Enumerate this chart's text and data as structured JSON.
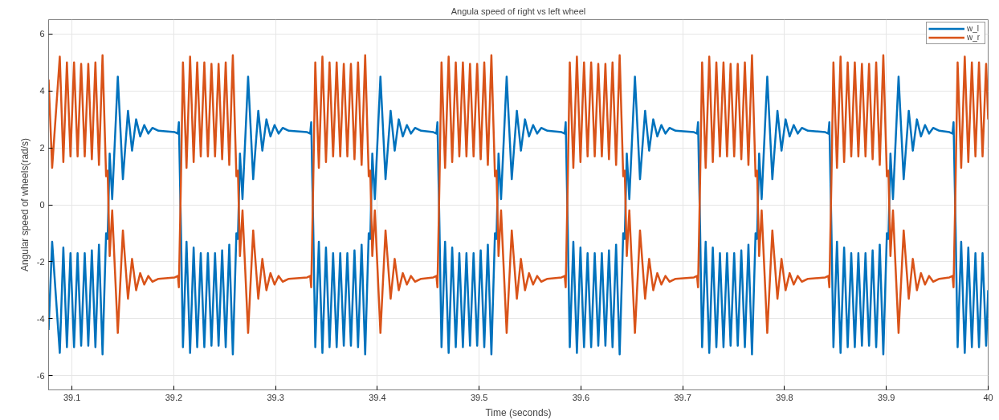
{
  "chart_data": {
    "type": "line",
    "title": "Angula speed of right vs left wheel",
    "xlabel": "Time (seconds)",
    "ylabel": "Angular speed of wheels(rad/s)",
    "x": [
      39.077,
      39.0805,
      39.088,
      39.0915,
      39.095,
      39.0985,
      39.102,
      39.1055,
      39.109,
      39.1125,
      39.116,
      39.1195,
      39.123,
      39.1265,
      39.13,
      39.1335,
      39.135,
      39.137,
      39.1395,
      39.145,
      39.15,
      39.155,
      39.159,
      39.163,
      39.167,
      39.171,
      39.175,
      39.179,
      39.185,
      39.201,
      39.204,
      39.205,
      39.207,
      39.209,
      39.2125,
      39.216,
      39.2195,
      39.223,
      39.2265,
      39.23,
      39.2335,
      39.237,
      39.2405,
      39.244,
      39.2475,
      39.251,
      39.2545,
      39.258,
      39.2615,
      39.263,
      39.265,
      39.2675,
      39.273,
      39.278,
      39.283,
      39.287,
      39.291,
      39.295,
      39.299,
      39.303,
      39.307,
      39.313,
      39.331,
      39.334,
      39.335,
      39.337,
      39.339,
      39.3425,
      39.346,
      39.3495,
      39.353,
      39.3565,
      39.36,
      39.3635,
      39.367,
      39.3705,
      39.374,
      39.3775,
      39.381,
      39.3845,
      39.388,
      39.3915,
      39.393,
      39.395,
      39.3975,
      39.403,
      39.408,
      39.413,
      39.417,
      39.421,
      39.425,
      39.429,
      39.433,
      39.437,
      39.443,
      39.455,
      39.458,
      39.459,
      39.461,
      39.463,
      39.4665,
      39.47,
      39.4735,
      39.477,
      39.4805,
      39.484,
      39.4875,
      39.491,
      39.4945,
      39.498,
      39.5015,
      39.505,
      39.5085,
      39.512,
      39.5155,
      39.517,
      39.519,
      39.5215,
      39.527,
      39.532,
      39.537,
      39.541,
      39.545,
      39.549,
      39.553,
      39.557,
      39.561,
      39.567,
      39.581,
      39.584,
      39.585,
      39.587,
      39.589,
      39.5925,
      39.596,
      39.5995,
      39.603,
      39.6065,
      39.61,
      39.6135,
      39.617,
      39.6205,
      39.624,
      39.6275,
      39.631,
      39.6345,
      39.638,
      39.6415,
      39.643,
      39.645,
      39.6475,
      39.653,
      39.658,
      39.663,
      39.667,
      39.671,
      39.675,
      39.679,
      39.683,
      39.687,
      39.693,
      39.711,
      39.714,
      39.715,
      39.717,
      39.719,
      39.7225,
      39.726,
      39.7295,
      39.733,
      39.7365,
      39.74,
      39.7435,
      39.747,
      39.7505,
      39.754,
      39.7575,
      39.761,
      39.7645,
      39.768,
      39.7715,
      39.773,
      39.775,
      39.7775,
      39.783,
      39.788,
      39.793,
      39.797,
      39.801,
      39.805,
      39.809,
      39.813,
      39.817,
      39.823,
      39.84,
      39.843,
      39.844,
      39.846,
      39.848,
      39.8515,
      39.855,
      39.8585,
      39.862,
      39.8655,
      39.869,
      39.8725,
      39.876,
      39.8795,
      39.883,
      39.8865,
      39.89,
      39.8935,
      39.897,
      39.9005,
      39.902,
      39.904,
      39.9065,
      39.912,
      39.917,
      39.922,
      39.926,
      39.93,
      39.934,
      39.938,
      39.942,
      39.946,
      39.952,
      39.962,
      39.965,
      39.966,
      39.968,
      39.97,
      39.9735,
      39.977,
      39.9805,
      39.984,
      39.9875,
      39.991,
      39.9945,
      39.998,
      40.0
    ],
    "series": [
      {
        "name": "w_l",
        "color": "#0072bd",
        "values": [
          -4.4,
          -1.3,
          -5.2,
          -1.5,
          -5.0,
          -1.7,
          -5.0,
          -1.7,
          -4.95,
          -1.7,
          -4.95,
          -1.6,
          -5.0,
          -1.4,
          -5.25,
          -1.0,
          -1.2,
          1.8,
          0.2,
          4.5,
          0.9,
          3.3,
          1.9,
          3.0,
          2.4,
          2.8,
          2.5,
          2.7,
          2.6,
          2.55,
          2.5,
          2.9,
          -0.8,
          -5.0,
          -1.3,
          -5.2,
          -1.5,
          -5.0,
          -1.7,
          -5.0,
          -1.7,
          -4.95,
          -1.7,
          -4.95,
          -1.6,
          -5.0,
          -1.4,
          -5.25,
          -1.0,
          -1.2,
          1.8,
          0.2,
          4.5,
          0.9,
          3.3,
          1.9,
          3.0,
          2.4,
          2.8,
          2.5,
          2.7,
          2.6,
          2.55,
          2.5,
          2.9,
          -0.8,
          -5.0,
          -1.3,
          -5.2,
          -1.5,
          -5.0,
          -1.7,
          -5.0,
          -1.7,
          -4.95,
          -1.7,
          -4.95,
          -1.6,
          -5.0,
          -1.4,
          -5.25,
          -1.0,
          -1.2,
          1.8,
          0.2,
          4.5,
          0.9,
          3.3,
          1.9,
          3.0,
          2.4,
          2.8,
          2.5,
          2.7,
          2.6,
          2.55,
          2.5,
          2.9,
          -0.8,
          -5.0,
          -1.3,
          -5.2,
          -1.5,
          -5.0,
          -1.7,
          -5.0,
          -1.7,
          -4.95,
          -1.7,
          -4.95,
          -1.6,
          -5.0,
          -1.4,
          -5.25,
          -1.0,
          -1.2,
          1.8,
          0.2,
          4.5,
          0.9,
          3.3,
          1.9,
          3.0,
          2.4,
          2.8,
          2.5,
          2.7,
          2.6,
          2.55,
          2.5,
          2.9,
          -0.8,
          -5.0,
          -1.3,
          -5.2,
          -1.5,
          -5.0,
          -1.7,
          -5.0,
          -1.7,
          -4.95,
          -1.7,
          -4.95,
          -1.6,
          -5.0,
          -1.4,
          -5.25,
          -1.0,
          -1.2,
          1.8,
          0.2,
          4.5,
          0.9,
          3.3,
          1.9,
          3.0,
          2.4,
          2.8,
          2.5,
          2.7,
          2.6,
          2.55,
          2.5,
          2.9,
          -0.8,
          -5.0,
          -1.3,
          -5.2,
          -1.5,
          -5.0,
          -1.7,
          -5.0,
          -1.7,
          -4.95,
          -1.7,
          -4.95,
          -1.6,
          -5.0,
          -1.4,
          -5.25,
          -1.0,
          -1.2,
          1.8,
          0.2,
          4.5,
          0.9,
          3.3,
          1.9,
          3.0,
          2.4,
          2.8,
          2.5,
          2.7,
          2.6,
          2.55,
          2.5,
          2.9,
          -0.8,
          -5.0,
          -1.3,
          -5.2,
          -1.5,
          -5.0,
          -1.7,
          -5.0,
          -1.7,
          -4.95,
          -1.7,
          -4.95,
          -1.6,
          -5.0,
          -1.4,
          -5.25,
          -1.0,
          -1.2,
          1.8,
          0.2,
          4.5,
          0.9,
          3.3,
          1.9,
          3.0,
          2.4,
          2.8,
          2.5,
          2.7,
          2.6,
          2.55,
          2.5,
          2.9,
          -0.8,
          -5.0,
          -1.3,
          -5.2,
          -1.5,
          -5.0,
          -1.7,
          -5.0,
          -1.7,
          -4.95,
          -3.0
        ]
      },
      {
        "name": "w_r",
        "color": "#d95319",
        "values": [
          4.4,
          1.3,
          5.2,
          1.5,
          5.0,
          1.7,
          5.0,
          1.7,
          4.95,
          1.7,
          4.95,
          1.6,
          5.0,
          1.4,
          5.25,
          1.0,
          1.2,
          -1.8,
          -0.2,
          -4.5,
          -0.9,
          -3.3,
          -1.9,
          -3.0,
          -2.4,
          -2.8,
          -2.5,
          -2.7,
          -2.6,
          -2.55,
          -2.5,
          -2.9,
          0.8,
          5.0,
          1.3,
          5.2,
          1.5,
          5.0,
          1.7,
          5.0,
          1.7,
          4.95,
          1.7,
          4.95,
          1.6,
          5.0,
          1.4,
          5.25,
          1.0,
          1.2,
          -1.8,
          -0.2,
          -4.5,
          -0.9,
          -3.3,
          -1.9,
          -3.0,
          -2.4,
          -2.8,
          -2.5,
          -2.7,
          -2.6,
          -2.55,
          -2.5,
          -2.9,
          0.8,
          5.0,
          1.3,
          5.2,
          1.5,
          5.0,
          1.7,
          5.0,
          1.7,
          4.95,
          1.7,
          4.95,
          1.6,
          5.0,
          1.4,
          5.25,
          1.0,
          1.2,
          -1.8,
          -0.2,
          -4.5,
          -0.9,
          -3.3,
          -1.9,
          -3.0,
          -2.4,
          -2.8,
          -2.5,
          -2.7,
          -2.6,
          -2.55,
          -2.5,
          -2.9,
          0.8,
          5.0,
          1.3,
          5.2,
          1.5,
          5.0,
          1.7,
          5.0,
          1.7,
          4.95,
          1.7,
          4.95,
          1.6,
          5.0,
          1.4,
          5.25,
          1.0,
          1.2,
          -1.8,
          -0.2,
          -4.5,
          -0.9,
          -3.3,
          -1.9,
          -3.0,
          -2.4,
          -2.8,
          -2.5,
          -2.7,
          -2.6,
          -2.55,
          -2.5,
          -2.9,
          0.8,
          5.0,
          1.3,
          5.2,
          1.5,
          5.0,
          1.7,
          5.0,
          1.7,
          4.95,
          1.7,
          4.95,
          1.6,
          5.0,
          1.4,
          5.25,
          1.0,
          1.2,
          -1.8,
          -0.2,
          -4.5,
          -0.9,
          -3.3,
          -1.9,
          -3.0,
          -2.4,
          -2.8,
          -2.5,
          -2.7,
          -2.6,
          -2.55,
          -2.5,
          -2.9,
          0.8,
          5.0,
          1.3,
          5.2,
          1.5,
          5.0,
          1.7,
          5.0,
          1.7,
          4.95,
          1.7,
          4.95,
          1.6,
          5.0,
          1.4,
          5.25,
          1.0,
          1.2,
          -1.8,
          -0.2,
          -4.5,
          -0.9,
          -3.3,
          -1.9,
          -3.0,
          -2.4,
          -2.8,
          -2.5,
          -2.7,
          -2.6,
          -2.55,
          -2.5,
          -2.9,
          0.8,
          5.0,
          1.3,
          5.2,
          1.5,
          5.0,
          1.7,
          5.0,
          1.7,
          4.95,
          1.7,
          4.95,
          1.6,
          5.0,
          1.4,
          5.25,
          1.0,
          1.2,
          -1.8,
          -0.2,
          -4.5,
          -0.9,
          -3.3,
          -1.9,
          -3.0,
          -2.4,
          -2.8,
          -2.5,
          -2.7,
          -2.6,
          -2.55,
          -2.5,
          -2.9,
          0.8,
          5.0,
          1.3,
          5.2,
          1.5,
          5.0,
          1.7,
          5.0,
          1.7,
          4.95,
          3.0
        ]
      }
    ],
    "xlim": [
      39.077,
      40.0
    ],
    "ylim": [
      -6.5,
      6.5
    ],
    "xticks": [
      39.1,
      39.2,
      39.3,
      39.4,
      39.5,
      39.6,
      39.7,
      39.8,
      39.9,
      40
    ],
    "yticks": [
      -6,
      -4,
      -2,
      0,
      2,
      4,
      6
    ],
    "grid": true,
    "legend": "top right",
    "marker": "none",
    "line_style": "solid"
  }
}
